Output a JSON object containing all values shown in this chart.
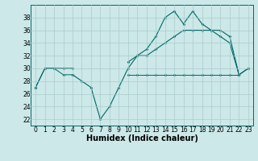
{
  "x": [
    0,
    1,
    2,
    3,
    4,
    5,
    6,
    7,
    8,
    9,
    10,
    11,
    12,
    13,
    14,
    15,
    16,
    17,
    18,
    19,
    20,
    21,
    22,
    23
  ],
  "line1": [
    27,
    30,
    30,
    29,
    29,
    null,
    null,
    null,
    null,
    null,
    29,
    29,
    29,
    29,
    29,
    29,
    29,
    29,
    29,
    29,
    29,
    29,
    29,
    null
  ],
  "line2": [
    27,
    30,
    30,
    30,
    30,
    null,
    null,
    null,
    null,
    null,
    31,
    32,
    32,
    33,
    34,
    35,
    36,
    36,
    36,
    36,
    36,
    35,
    29,
    30
  ],
  "line3": [
    null,
    null,
    null,
    null,
    29,
    28,
    27,
    22,
    24,
    27,
    30,
    32,
    33,
    35,
    38,
    39,
    37,
    39,
    37,
    36,
    35,
    34,
    29,
    30
  ],
  "background": "#cce8e8",
  "grid_color": "#aacccc",
  "line_color": "#006666",
  "ylim": [
    21,
    40
  ],
  "xlim": [
    -0.5,
    23.5
  ],
  "yticks": [
    22,
    24,
    26,
    28,
    30,
    32,
    34,
    36,
    38
  ],
  "xticks": [
    0,
    1,
    2,
    3,
    4,
    5,
    6,
    7,
    8,
    9,
    10,
    11,
    12,
    13,
    14,
    15,
    16,
    17,
    18,
    19,
    20,
    21,
    22,
    23
  ],
  "xlabel": "Humidex (Indice chaleur)",
  "xlabel_fontsize": 7,
  "tick_fontsize": 5.5
}
